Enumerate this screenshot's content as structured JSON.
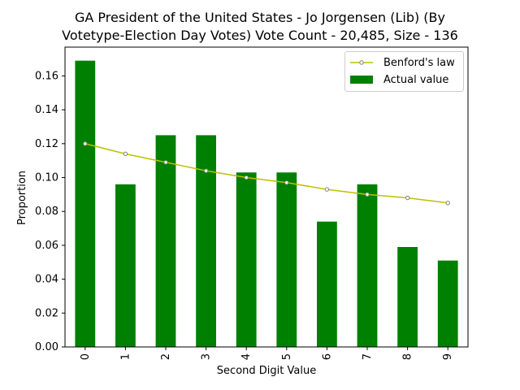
{
  "chart_data": {
    "type": "bar",
    "title_line1": "GA President of the United States - Jo Jorgensen (Lib) (By",
    "title_line2": "Votetype-Election Day Votes) Vote Count - 20,485, Size - 136",
    "xlabel": "Second Digit Value",
    "ylabel": "Proportion",
    "categories": [
      "0",
      "1",
      "2",
      "3",
      "4",
      "5",
      "6",
      "7",
      "8",
      "9"
    ],
    "ylim": [
      0,
      0.177
    ],
    "yticks": [
      0.0,
      0.02,
      0.04,
      0.06,
      0.08,
      0.1,
      0.12,
      0.14,
      0.16
    ],
    "ytick_labels": [
      "0.00",
      "0.02",
      "0.04",
      "0.06",
      "0.08",
      "0.10",
      "0.12",
      "0.14",
      "0.16"
    ],
    "grid": false,
    "legend_position": "top-right",
    "series": [
      {
        "name": "Benford's law",
        "kind": "line",
        "color": "#bfbf00",
        "marker_face": "#ffffff",
        "marker_edge": "#808080",
        "values": [
          0.12,
          0.114,
          0.109,
          0.104,
          0.1,
          0.097,
          0.093,
          0.09,
          0.088,
          0.085
        ]
      },
      {
        "name": "Actual value",
        "kind": "bar",
        "color": "#008000",
        "values": [
          0.169,
          0.096,
          0.125,
          0.125,
          0.103,
          0.103,
          0.074,
          0.096,
          0.059,
          0.051
        ]
      }
    ]
  }
}
